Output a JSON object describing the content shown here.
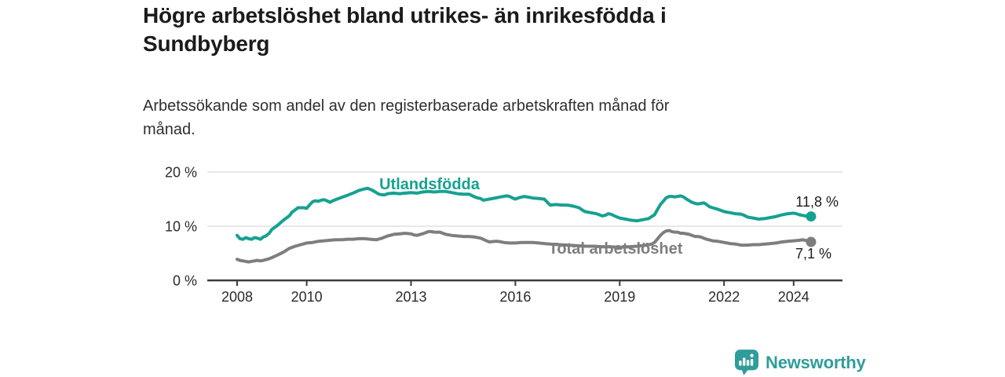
{
  "header": {
    "title": "Högre arbetslöshet bland utrikes- än inrikesfödda i Sundbyberg",
    "subtitle": "Arbetssökande som andel av den registerbaserade arbetskraften månad för månad."
  },
  "branding": {
    "name": "Newsworthy",
    "color": "#2f9d9a",
    "icon": "bar-chart-speech-bubble-icon"
  },
  "chart_data": {
    "type": "line",
    "title": "Högre arbetslöshet bland utrikes- än inrikesfödda i Sundbyberg",
    "subtitle": "Arbetssökande som andel av den registerbaserade arbetskraften månad för månad.",
    "unit": "%",
    "grid": "horizontal",
    "legend_position": "inline-labels",
    "x_axis": {
      "ticks": [
        2008,
        2010,
        2013,
        2016,
        2019,
        2022,
        2024
      ],
      "range": [
        2007.15,
        2025.4
      ]
    },
    "y_axis": {
      "ticks": [
        0,
        10,
        20
      ],
      "tick_labels": [
        "0 %",
        "10 %",
        "20 %"
      ],
      "range": [
        0,
        21.5
      ]
    },
    "series": [
      {
        "name": "Utlandsfödda",
        "color": "#16a191",
        "end_label": "11,8 %",
        "end_value": 11.8,
        "points": [
          [
            2008.0,
            8.3
          ],
          [
            2008.08,
            7.7
          ],
          [
            2008.17,
            7.6
          ],
          [
            2008.25,
            7.9
          ],
          [
            2008.33,
            7.7
          ],
          [
            2008.42,
            7.6
          ],
          [
            2008.5,
            7.9
          ],
          [
            2008.58,
            7.8
          ],
          [
            2008.67,
            7.6
          ],
          [
            2008.75,
            8.0
          ],
          [
            2008.83,
            8.2
          ],
          [
            2008.92,
            8.7
          ],
          [
            2009.0,
            9.4
          ],
          [
            2009.17,
            10.2
          ],
          [
            2009.33,
            11.1
          ],
          [
            2009.5,
            11.9
          ],
          [
            2009.58,
            12.6
          ],
          [
            2009.75,
            13.4
          ],
          [
            2009.92,
            13.4
          ],
          [
            2010.0,
            13.3
          ],
          [
            2010.08,
            13.9
          ],
          [
            2010.17,
            14.5
          ],
          [
            2010.25,
            14.7
          ],
          [
            2010.33,
            14.6
          ],
          [
            2010.42,
            14.8
          ],
          [
            2010.5,
            14.9
          ],
          [
            2010.58,
            14.7
          ],
          [
            2010.67,
            14.4
          ],
          [
            2010.75,
            14.7
          ],
          [
            2010.83,
            14.9
          ],
          [
            2011.0,
            15.3
          ],
          [
            2011.17,
            15.7
          ],
          [
            2011.33,
            16.1
          ],
          [
            2011.5,
            16.6
          ],
          [
            2011.67,
            16.9
          ],
          [
            2011.75,
            17.0
          ],
          [
            2011.83,
            16.8
          ],
          [
            2011.92,
            16.5
          ],
          [
            2012.0,
            16.2
          ],
          [
            2012.08,
            15.9
          ],
          [
            2012.17,
            15.8
          ],
          [
            2012.25,
            15.8
          ],
          [
            2012.33,
            16.0
          ],
          [
            2012.5,
            16.1
          ],
          [
            2012.67,
            16.0
          ],
          [
            2012.83,
            16.1
          ],
          [
            2013.0,
            16.2
          ],
          [
            2013.17,
            16.1
          ],
          [
            2013.33,
            16.3
          ],
          [
            2013.5,
            16.4
          ],
          [
            2013.67,
            16.3
          ],
          [
            2013.83,
            16.4
          ],
          [
            2014.0,
            16.4
          ],
          [
            2014.17,
            16.2
          ],
          [
            2014.33,
            16.0
          ],
          [
            2014.5,
            15.9
          ],
          [
            2014.67,
            15.9
          ],
          [
            2014.83,
            15.4
          ],
          [
            2014.92,
            15.2
          ],
          [
            2015.0,
            15.1
          ],
          [
            2015.08,
            14.8
          ],
          [
            2015.17,
            14.9
          ],
          [
            2015.25,
            15.0
          ],
          [
            2015.42,
            15.2
          ],
          [
            2015.58,
            15.4
          ],
          [
            2015.75,
            15.6
          ],
          [
            2015.83,
            15.5
          ],
          [
            2015.92,
            15.2
          ],
          [
            2016.0,
            15.0
          ],
          [
            2016.08,
            15.2
          ],
          [
            2016.25,
            15.5
          ],
          [
            2016.42,
            15.3
          ],
          [
            2016.5,
            15.2
          ],
          [
            2016.67,
            15.1
          ],
          [
            2016.83,
            15.0
          ],
          [
            2016.92,
            14.4
          ],
          [
            2017.0,
            13.9
          ],
          [
            2017.17,
            14.0
          ],
          [
            2017.33,
            13.9
          ],
          [
            2017.5,
            13.9
          ],
          [
            2017.67,
            13.7
          ],
          [
            2017.83,
            13.4
          ],
          [
            2017.92,
            13.0
          ],
          [
            2018.0,
            12.7
          ],
          [
            2018.17,
            12.5
          ],
          [
            2018.33,
            12.3
          ],
          [
            2018.5,
            11.9
          ],
          [
            2018.58,
            12.0
          ],
          [
            2018.67,
            12.3
          ],
          [
            2018.75,
            12.2
          ],
          [
            2018.92,
            11.7
          ],
          [
            2019.0,
            11.5
          ],
          [
            2019.17,
            11.3
          ],
          [
            2019.33,
            11.1
          ],
          [
            2019.5,
            11.0
          ],
          [
            2019.67,
            11.2
          ],
          [
            2019.83,
            11.4
          ],
          [
            2019.92,
            11.8
          ],
          [
            2020.0,
            12.1
          ],
          [
            2020.08,
            13.0
          ],
          [
            2020.17,
            14.0
          ],
          [
            2020.25,
            14.6
          ],
          [
            2020.33,
            15.2
          ],
          [
            2020.42,
            15.5
          ],
          [
            2020.5,
            15.5
          ],
          [
            2020.58,
            15.4
          ],
          [
            2020.67,
            15.5
          ],
          [
            2020.75,
            15.6
          ],
          [
            2020.83,
            15.4
          ],
          [
            2020.92,
            15.0
          ],
          [
            2021.0,
            14.7
          ],
          [
            2021.08,
            14.4
          ],
          [
            2021.17,
            14.2
          ],
          [
            2021.25,
            14.1
          ],
          [
            2021.33,
            14.2
          ],
          [
            2021.42,
            14.3
          ],
          [
            2021.5,
            14.0
          ],
          [
            2021.58,
            13.6
          ],
          [
            2021.67,
            13.4
          ],
          [
            2021.83,
            13.1
          ],
          [
            2022.0,
            12.7
          ],
          [
            2022.17,
            12.5
          ],
          [
            2022.33,
            12.3
          ],
          [
            2022.5,
            12.2
          ],
          [
            2022.58,
            12.0
          ],
          [
            2022.67,
            11.7
          ],
          [
            2022.83,
            11.5
          ],
          [
            2023.0,
            11.3
          ],
          [
            2023.17,
            11.4
          ],
          [
            2023.33,
            11.6
          ],
          [
            2023.5,
            11.8
          ],
          [
            2023.67,
            12.1
          ],
          [
            2023.83,
            12.3
          ],
          [
            2024.0,
            12.4
          ],
          [
            2024.08,
            12.3
          ],
          [
            2024.17,
            12.1
          ],
          [
            2024.25,
            12.0
          ],
          [
            2024.33,
            11.9
          ],
          [
            2024.5,
            11.8
          ]
        ]
      },
      {
        "name": "Total arbetslöshet",
        "color": "#7e7e7e",
        "end_label": "7,1 %",
        "end_value": 7.1,
        "points": [
          [
            2008.0,
            3.9
          ],
          [
            2008.08,
            3.7
          ],
          [
            2008.17,
            3.6
          ],
          [
            2008.25,
            3.5
          ],
          [
            2008.33,
            3.4
          ],
          [
            2008.5,
            3.6
          ],
          [
            2008.58,
            3.7
          ],
          [
            2008.67,
            3.6
          ],
          [
            2008.75,
            3.7
          ],
          [
            2008.92,
            4.0
          ],
          [
            2009.0,
            4.2
          ],
          [
            2009.17,
            4.7
          ],
          [
            2009.33,
            5.2
          ],
          [
            2009.5,
            5.9
          ],
          [
            2009.67,
            6.3
          ],
          [
            2009.83,
            6.6
          ],
          [
            2010.0,
            6.9
          ],
          [
            2010.17,
            7.0
          ],
          [
            2010.33,
            7.2
          ],
          [
            2010.5,
            7.3
          ],
          [
            2010.67,
            7.4
          ],
          [
            2010.83,
            7.5
          ],
          [
            2011.0,
            7.5
          ],
          [
            2011.17,
            7.6
          ],
          [
            2011.33,
            7.6
          ],
          [
            2011.5,
            7.7
          ],
          [
            2011.67,
            7.7
          ],
          [
            2011.83,
            7.6
          ],
          [
            2012.0,
            7.5
          ],
          [
            2012.17,
            7.8
          ],
          [
            2012.33,
            8.2
          ],
          [
            2012.5,
            8.5
          ],
          [
            2012.67,
            8.6
          ],
          [
            2012.83,
            8.7
          ],
          [
            2013.0,
            8.6
          ],
          [
            2013.08,
            8.4
          ],
          [
            2013.17,
            8.3
          ],
          [
            2013.33,
            8.6
          ],
          [
            2013.5,
            9.0
          ],
          [
            2013.58,
            9.0
          ],
          [
            2013.67,
            8.9
          ],
          [
            2013.83,
            8.9
          ],
          [
            2014.0,
            8.5
          ],
          [
            2014.17,
            8.3
          ],
          [
            2014.33,
            8.2
          ],
          [
            2014.5,
            8.1
          ],
          [
            2014.67,
            8.1
          ],
          [
            2014.83,
            8.0
          ],
          [
            2015.0,
            7.8
          ],
          [
            2015.17,
            7.3
          ],
          [
            2015.25,
            7.1
          ],
          [
            2015.42,
            7.2
          ],
          [
            2015.5,
            7.2
          ],
          [
            2015.67,
            7.0
          ],
          [
            2015.83,
            6.9
          ],
          [
            2016.0,
            6.9
          ],
          [
            2016.17,
            7.0
          ],
          [
            2016.33,
            7.0
          ],
          [
            2016.5,
            7.0
          ],
          [
            2016.67,
            6.9
          ],
          [
            2016.83,
            6.8
          ],
          [
            2017.0,
            6.7
          ],
          [
            2017.25,
            6.6
          ],
          [
            2017.5,
            6.5
          ],
          [
            2017.75,
            6.4
          ],
          [
            2018.0,
            6.3
          ],
          [
            2018.25,
            6.3
          ],
          [
            2018.5,
            6.2
          ],
          [
            2018.75,
            6.2
          ],
          [
            2019.0,
            6.1
          ],
          [
            2019.25,
            6.2
          ],
          [
            2019.5,
            6.3
          ],
          [
            2019.75,
            6.5
          ],
          [
            2019.92,
            6.7
          ],
          [
            2020.0,
            7.0
          ],
          [
            2020.08,
            7.6
          ],
          [
            2020.17,
            8.3
          ],
          [
            2020.25,
            8.8
          ],
          [
            2020.33,
            9.1
          ],
          [
            2020.42,
            9.2
          ],
          [
            2020.5,
            9.0
          ],
          [
            2020.58,
            8.9
          ],
          [
            2020.67,
            8.9
          ],
          [
            2020.75,
            8.7
          ],
          [
            2020.83,
            8.7
          ],
          [
            2021.0,
            8.5
          ],
          [
            2021.08,
            8.3
          ],
          [
            2021.17,
            8.1
          ],
          [
            2021.25,
            8.1
          ],
          [
            2021.33,
            8.0
          ],
          [
            2021.5,
            7.6
          ],
          [
            2021.67,
            7.3
          ],
          [
            2021.83,
            7.2
          ],
          [
            2022.0,
            7.0
          ],
          [
            2022.17,
            6.8
          ],
          [
            2022.33,
            6.7
          ],
          [
            2022.5,
            6.5
          ],
          [
            2022.67,
            6.5
          ],
          [
            2022.83,
            6.6
          ],
          [
            2023.0,
            6.6
          ],
          [
            2023.17,
            6.7
          ],
          [
            2023.33,
            6.8
          ],
          [
            2023.5,
            6.9
          ],
          [
            2023.67,
            7.1
          ],
          [
            2023.83,
            7.2
          ],
          [
            2024.0,
            7.3
          ],
          [
            2024.17,
            7.4
          ],
          [
            2024.25,
            7.5
          ],
          [
            2024.33,
            7.4
          ],
          [
            2024.5,
            7.1
          ]
        ]
      }
    ]
  }
}
